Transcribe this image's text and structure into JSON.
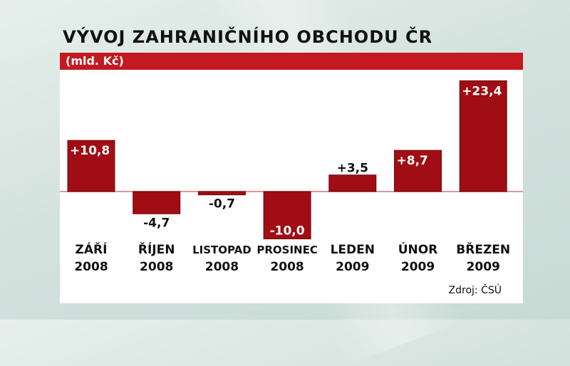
{
  "chart_data": {
    "type": "bar",
    "title": "VÝVOJ ZAHRANIČNÍHO OBCHODU ČR",
    "unit_label": "(mld. Kč)",
    "categories": [
      [
        "ZÁŘÍ",
        "2008"
      ],
      [
        "ŘÍJEN",
        "2008"
      ],
      [
        "LISTOPAD",
        "2008"
      ],
      [
        "PROSINEC",
        "2008"
      ],
      [
        "LEDEN",
        "2009"
      ],
      [
        "ÚNOR",
        "2009"
      ],
      [
        "BŘEZEN",
        "2009"
      ]
    ],
    "values": [
      10.8,
      -4.7,
      -0.7,
      -10.0,
      3.5,
      8.7,
      23.4
    ],
    "data_labels": [
      "+10,8",
      "-4,7",
      "-0,7",
      "-10,0",
      "+3,5",
      "+8,7",
      "+23,4"
    ],
    "source": "Zdroj: ČSÚ",
    "bar_color": "#a00d14",
    "accent_color": "#c41920"
  }
}
